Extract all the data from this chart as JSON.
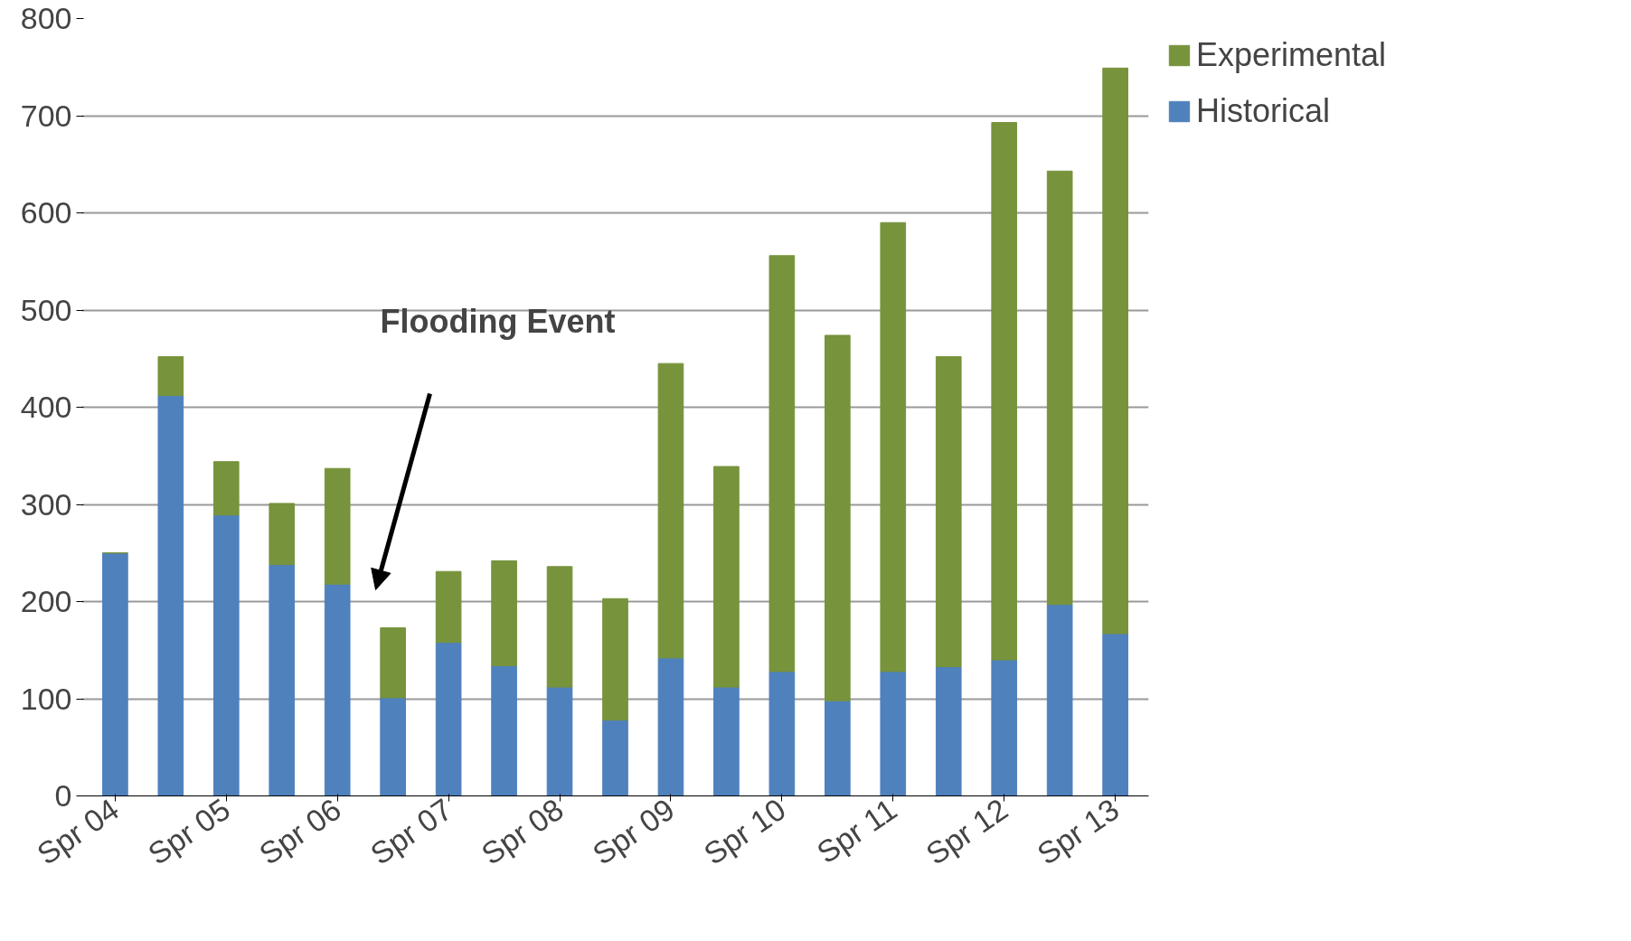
{
  "chart_data": {
    "type": "bar",
    "stacked": true,
    "categories": [
      "Spr 04",
      null,
      "Spr 05",
      null,
      "Spr 06",
      null,
      "Spr 07",
      null,
      "Spr 08",
      null,
      "Spr 09",
      null,
      "Spr 10",
      null,
      "Spr 11",
      null,
      "Spr 12",
      null,
      "Spr 13"
    ],
    "series": [
      {
        "name": "Historical",
        "color": "#4f81bd",
        "values": [
          250,
          412,
          289,
          238,
          218,
          101,
          158,
          134,
          112,
          78,
          142,
          112,
          128,
          98,
          128,
          133,
          140,
          197,
          167
        ]
      },
      {
        "name": "Experimental",
        "color": "#77933c",
        "values": [
          0,
          40,
          55,
          63,
          119,
          72,
          73,
          108,
          124,
          125,
          303,
          227,
          428,
          376,
          462,
          319,
          553,
          446,
          582
        ]
      }
    ],
    "ylim": [
      0,
      800
    ],
    "yticks": [
      0,
      100,
      200,
      300,
      400,
      500,
      600,
      700,
      800
    ],
    "grid": "y",
    "legend": "right",
    "annotations": [
      "Flooding Event"
    ]
  }
}
